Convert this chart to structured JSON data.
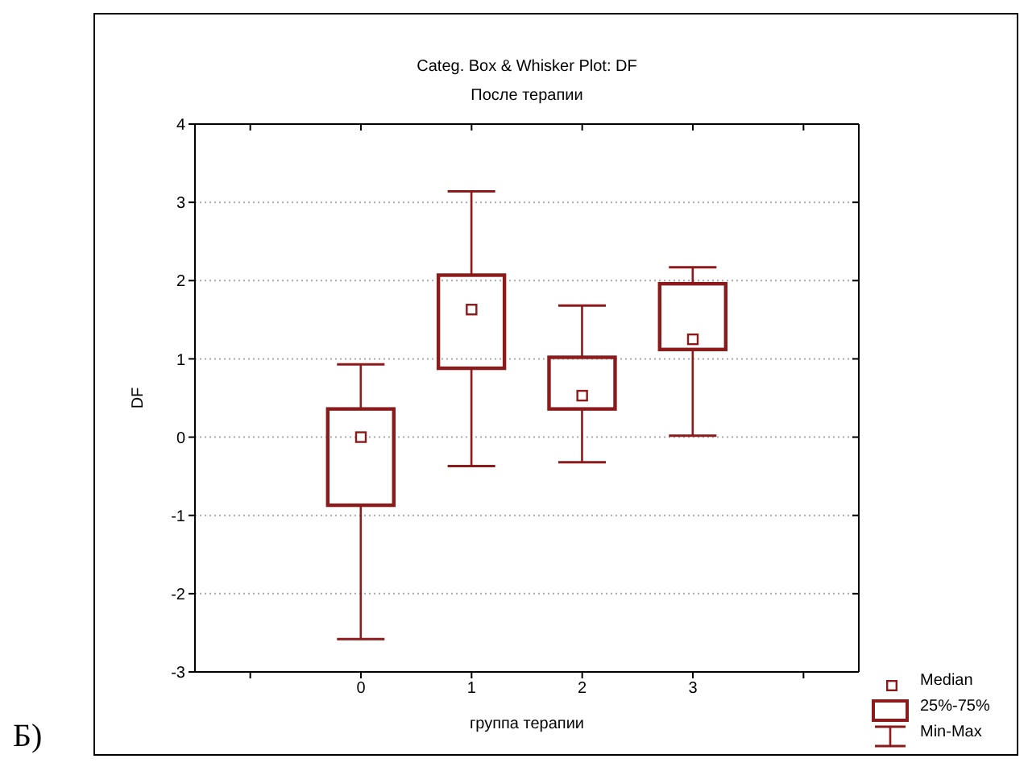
{
  "chart_data": {
    "type": "box",
    "title": "Categ. Box & Whisker Plot: DF",
    "subtitle": "После терапии",
    "xlabel": "группа терапии",
    "ylabel": "DF",
    "categories": [
      null,
      "0",
      "1",
      "2",
      "3",
      null
    ],
    "color": "#8b1a1a",
    "boxes": [
      null,
      {
        "low": -2.58,
        "q1": -0.87,
        "median": 0,
        "q3": 0.36,
        "high": 0.93
      },
      {
        "low": -0.37,
        "q1": 0.88,
        "median": 1.63,
        "q3": 2.07,
        "high": 3.14
      },
      {
        "low": -0.32,
        "q1": 0.36,
        "median": 0.53,
        "q3": 1.02,
        "high": 1.68
      },
      {
        "low": 0.02,
        "q1": 1.12,
        "median": 1.25,
        "q3": 1.96,
        "high": 2.17
      },
      null
    ],
    "ylim": [
      -3,
      4
    ],
    "yticks": [
      -3,
      -2,
      -1,
      0,
      1,
      2,
      3,
      4
    ],
    "grid": "y",
    "annotations": [
      "Median",
      "25%-75%",
      "Min-Max",
      "Б)"
    ]
  }
}
